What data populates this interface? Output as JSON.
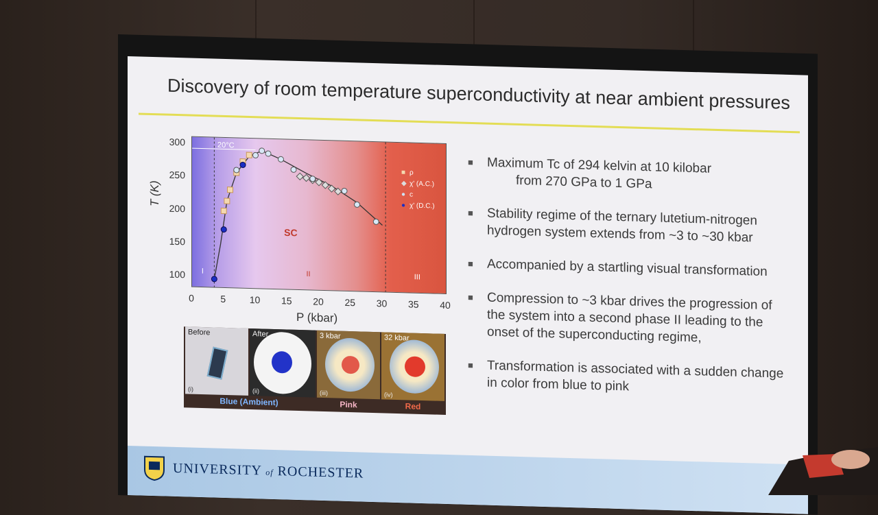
{
  "slide": {
    "title": "Discovery of room temperature  superconductivity at near ambient pressures"
  },
  "chart_data": {
    "type": "scatter",
    "xlabel": "P (kbar)",
    "ylabel": "T (K)",
    "xlim": [
      0,
      40
    ],
    "ylim": [
      85,
      310
    ],
    "x_ticks": [
      "0",
      "5",
      "10",
      "15",
      "20",
      "25",
      "30",
      "35",
      "40"
    ],
    "y_ticks": [
      "100",
      "150",
      "200",
      "250",
      "300"
    ],
    "annotation_temp": "20°C",
    "regions": [
      "I",
      "II",
      "III"
    ],
    "sc_label": "SC",
    "series": [
      {
        "name": "ρ",
        "x": [
          5,
          5.5,
          6,
          7,
          8,
          9
        ],
        "y": [
          200,
          215,
          232,
          258,
          275,
          285
        ]
      },
      {
        "name": "χ' (A.C.)",
        "x": [
          17,
          18,
          19,
          20,
          21,
          22,
          23
        ],
        "y": [
          255,
          253,
          250,
          247,
          243,
          238,
          234
        ]
      },
      {
        "name": "c",
        "x": [
          7,
          10,
          11,
          12,
          14,
          16,
          19,
          24,
          26,
          29
        ],
        "y": [
          262,
          285,
          292,
          288,
          280,
          265,
          252,
          235,
          215,
          190
        ]
      },
      {
        "name": "χ' (D.C.)",
        "x": [
          3.5,
          5,
          8
        ],
        "y": [
          97,
          172,
          270
        ]
      }
    ]
  },
  "photos": [
    {
      "label": "Before",
      "roman": "(i)"
    },
    {
      "label": "After",
      "roman": "(ii)"
    },
    {
      "label": "3 kbar",
      "roman": "(iii)"
    },
    {
      "label": "32 kbar",
      "roman": "(iv)"
    }
  ],
  "captions": {
    "blue": "Blue (Ambient)",
    "pink": "Pink",
    "red": "Red"
  },
  "bullets": {
    "b1_line1": "Maximum Tc of 294 kelvin at 10 kilobar",
    "b1_line2": "from 270 GPa to 1 GPa",
    "b2": "Stability regime of the ternary lutetium-nitrogen hydrogen system extends from ~3 to ~30 kbar",
    "b3": "Accompanied by a startling visual transformation",
    "b4": "Compression to ~3 kbar drives the progression of the system into a second phase II leading to the onset of the superconducting regime,",
    "b5": "Transformation is associated with a sudden change in color from blue to pink",
    "marker": "■"
  },
  "footer": {
    "university": "UNIVERSITY",
    "of": "of",
    "rochester": "ROCHESTER"
  },
  "colors": {
    "accent_rule": "#e3dd55",
    "footer": "#a9c7e4",
    "university_text": "#0a2a5c"
  }
}
